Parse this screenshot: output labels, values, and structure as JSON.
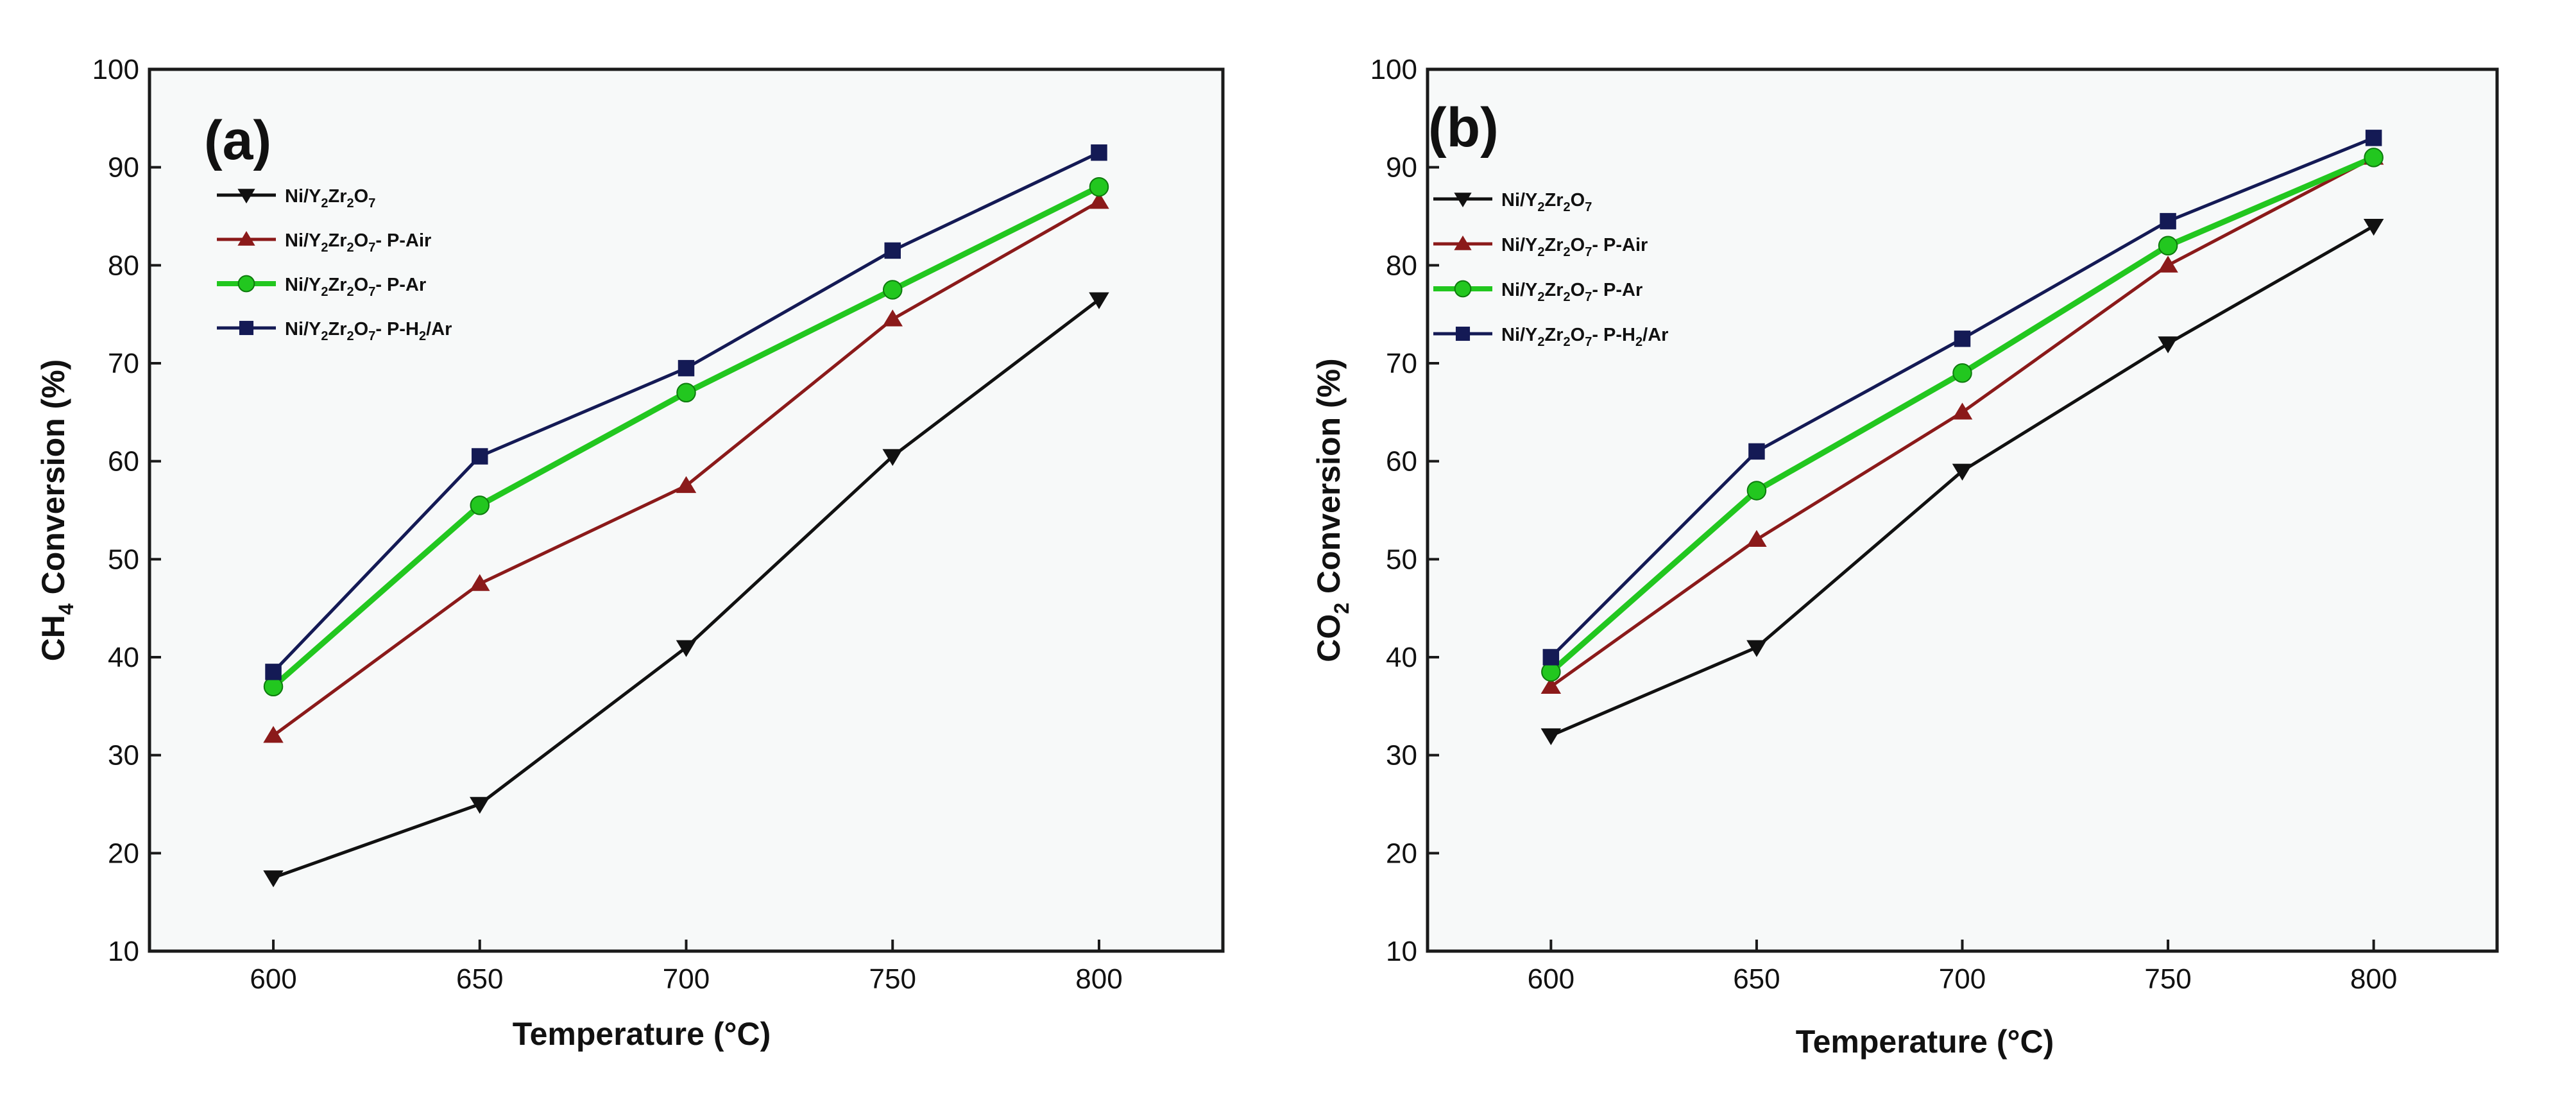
{
  "figure": {
    "background": "#ffffff"
  },
  "chart_data": [
    {
      "type": "line",
      "panel_label": "(a)",
      "xlabel": "Temperature (°C)",
      "ylabel": "CH4 Conversion (%)",
      "x": [
        600,
        650,
        700,
        750,
        800
      ],
      "xticks": [
        "600",
        "650",
        "700",
        "750",
        "800"
      ],
      "xlim": [
        570,
        830
      ],
      "ylim": [
        10,
        100
      ],
      "yticks": [
        "10",
        "20",
        "30",
        "40",
        "50",
        "60",
        "70",
        "80",
        "90",
        "100"
      ],
      "grid": false,
      "legend_position": "upper-left",
      "series": [
        {
          "name": "Ni/Y2Zr2O7",
          "marker": "triangle-down",
          "color": "#111111",
          "values": [
            17.5,
            25,
            41,
            60.5,
            76.5
          ]
        },
        {
          "name": "Ni/Y2Zr2O7- P-Air",
          "marker": "triangle-up",
          "color": "#8b1a1a",
          "values": [
            32,
            47.5,
            57.5,
            74.5,
            86.5
          ]
        },
        {
          "name": "Ni/Y2Zr2O7- P-Ar",
          "marker": "circle",
          "color": "#22c71f",
          "values": [
            37,
            55.5,
            67,
            77.5,
            88
          ]
        },
        {
          "name": "Ni/Y2Zr2O7- P-H2/Ar",
          "marker": "square",
          "color": "#141a55",
          "values": [
            38.5,
            60.5,
            69.5,
            81.5,
            91.5
          ]
        }
      ]
    },
    {
      "type": "line",
      "panel_label": "(b)",
      "xlabel": "Temperature (°C)",
      "ylabel": "CO2 Conversion (%)",
      "x": [
        600,
        650,
        700,
        750,
        800
      ],
      "xticks": [
        "600",
        "650",
        "700",
        "750",
        "800"
      ],
      "xlim": [
        570,
        830
      ],
      "ylim": [
        10,
        100
      ],
      "yticks": [
        "10",
        "20",
        "30",
        "40",
        "50",
        "60",
        "70",
        "80",
        "90",
        "100"
      ],
      "grid": false,
      "legend_position": "upper-left",
      "series": [
        {
          "name": "Ni/Y2Zr2O7",
          "marker": "triangle-down",
          "color": "#111111",
          "values": [
            32,
            41,
            59,
            72,
            84
          ]
        },
        {
          "name": "Ni/Y2Zr2O7- P-Air",
          "marker": "triangle-up",
          "color": "#8b1a1a",
          "values": [
            37,
            52,
            65,
            80,
            91
          ]
        },
        {
          "name": "Ni/Y2Zr2O7- P-Ar",
          "marker": "circle",
          "color": "#22c71f",
          "values": [
            38.5,
            57,
            69,
            82,
            91
          ]
        },
        {
          "name": "Ni/Y2Zr2O7- P-H2/Ar",
          "marker": "square",
          "color": "#141a55",
          "values": [
            40,
            61,
            72.5,
            84.5,
            93
          ]
        }
      ]
    }
  ]
}
